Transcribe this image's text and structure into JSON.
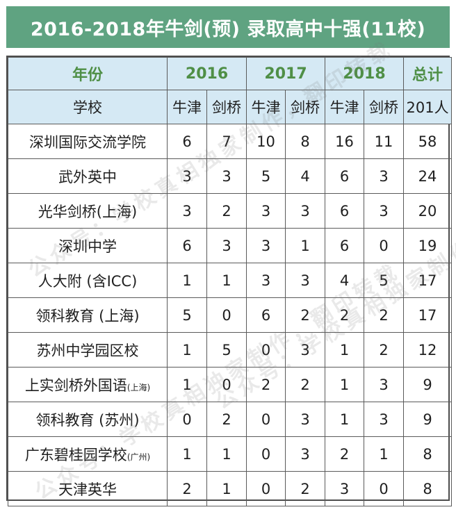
{
  "title": "2016-2018年牛剑(预) 录取高中十强(11校)",
  "header": {
    "row1": {
      "label": "年份",
      "years": [
        "2016",
        "2017",
        "2018"
      ],
      "total": "总计"
    },
    "row2": {
      "label": "学校",
      "subs": [
        "牛津",
        "剑桥",
        "牛津",
        "剑桥",
        "牛津",
        "剑桥"
      ],
      "total": "201人"
    }
  },
  "rows": [
    {
      "school": "深圳国际交流学院",
      "note": "",
      "values": [
        "6",
        "7",
        "10",
        "8",
        "16",
        "11"
      ],
      "total": "58"
    },
    {
      "school": "武外英中",
      "note": "",
      "values": [
        "3",
        "3",
        "5",
        "4",
        "6",
        "3"
      ],
      "total": "24"
    },
    {
      "school": "光华剑桥(上海)",
      "note": "",
      "values": [
        "3",
        "2",
        "3",
        "3",
        "6",
        "3"
      ],
      "total": "20"
    },
    {
      "school": "深圳中学",
      "note": "",
      "values": [
        "6",
        "3",
        "3",
        "1",
        "6",
        "0"
      ],
      "total": "19"
    },
    {
      "school": "人大附 (含ICC)",
      "note": "",
      "values": [
        "1",
        "1",
        "3",
        "3",
        "4",
        "5"
      ],
      "total": "17"
    },
    {
      "school": "领科教育 (上海)",
      "note": "",
      "values": [
        "5",
        "0",
        "6",
        "2",
        "2",
        "2"
      ],
      "total": "17"
    },
    {
      "school": "苏州中学园区校",
      "note": "",
      "values": [
        "1",
        "5",
        "0",
        "3",
        "1",
        "2"
      ],
      "total": "12"
    },
    {
      "school": "上实剑桥外国语",
      "note": "(上海)",
      "values": [
        "1",
        "0",
        "2",
        "2",
        "1",
        "3"
      ],
      "total": "9"
    },
    {
      "school": "领科教育 (苏州)",
      "note": "",
      "values": [
        "0",
        "2",
        "0",
        "3",
        "1",
        "3"
      ],
      "total": "9"
    },
    {
      "school": "广东碧桂园学校",
      "note": "(广州)",
      "values": [
        "1",
        "1",
        "0",
        "3",
        "2",
        "1"
      ],
      "total": "8"
    },
    {
      "school": "天津英华",
      "note": "",
      "values": [
        "2",
        "1",
        "0",
        "2",
        "3",
        "0"
      ],
      "total": "8"
    }
  ],
  "watermarks": [
    "公众号：学校真相独家制作，翻印转载",
    "公众号：学校真相独家制作，翻印转载",
    "公众号：学校真相独家制作，翻印转载"
  ],
  "colors": {
    "title_bg": "#5fa381",
    "header_bg": "#d5e9f4",
    "year_text": "#4f8f46"
  }
}
